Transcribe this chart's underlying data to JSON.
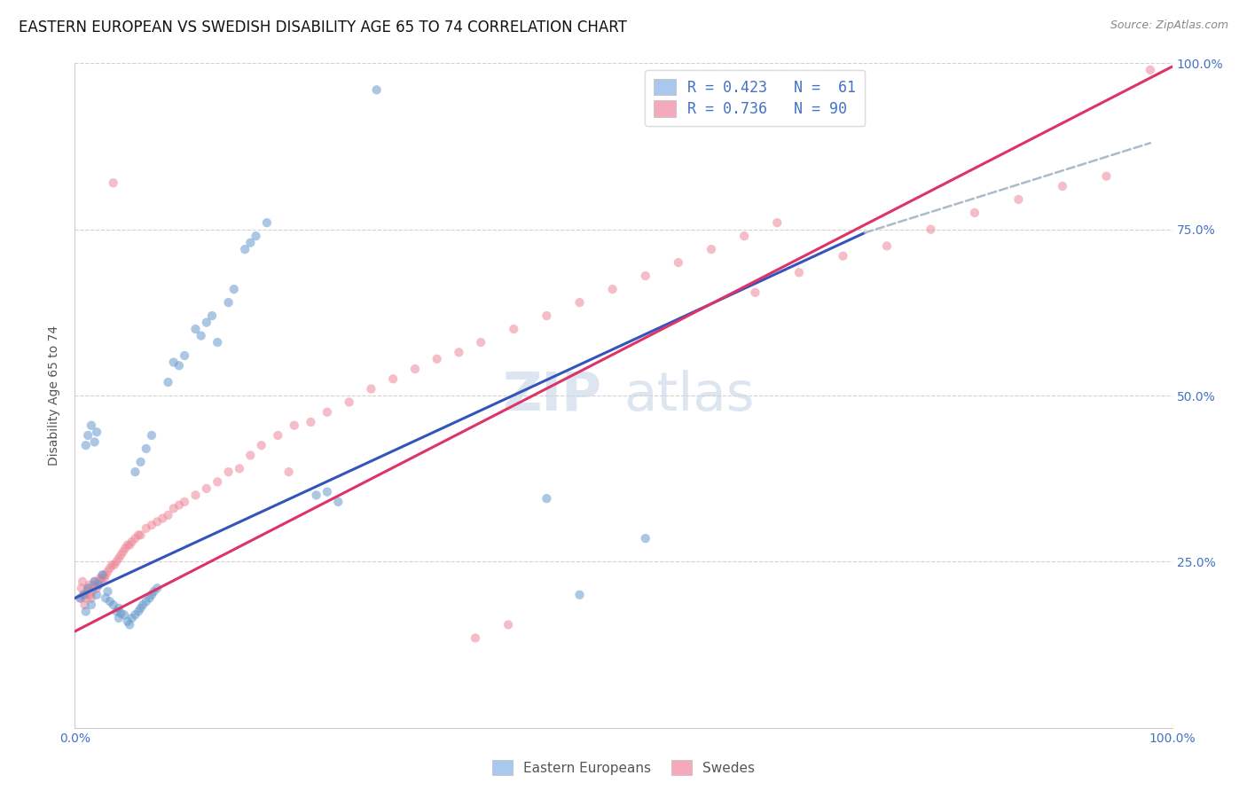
{
  "title": "EASTERN EUROPEAN VS SWEDISH DISABILITY AGE 65 TO 74 CORRELATION CHART",
  "source": "Source: ZipAtlas.com",
  "ylabel": "Disability Age 65 to 74",
  "xlim": [
    0.0,
    1.0
  ],
  "ylim": [
    0.0,
    1.0
  ],
  "xtick_vals": [
    0.0,
    1.0
  ],
  "xtick_labels": [
    "0.0%",
    "100.0%"
  ],
  "ytick_vals_right": [
    0.25,
    0.5,
    0.75,
    1.0
  ],
  "ytick_labels_right": [
    "25.0%",
    "50.0%",
    "75.0%",
    "100.0%"
  ],
  "watermark_zip": "ZIP",
  "watermark_atlas": "atlas",
  "blue_color": "#6699cc",
  "pink_color": "#ee8899",
  "blue_line_color": "#3355bb",
  "pink_line_color": "#dd3366",
  "dashed_line_color": "#aabbcc",
  "legend_blue_color": "#aac8ee",
  "legend_pink_color": "#f4aabb",
  "background_color": "#ffffff",
  "grid_color": "#cccccc",
  "title_fontsize": 12,
  "source_fontsize": 9,
  "axis_label_fontsize": 10,
  "tick_fontsize": 10,
  "scatter_size": 55,
  "scatter_alpha": 0.55,
  "blue_line": {
    "x0": 0.0,
    "y0": 0.195,
    "x1": 0.72,
    "y1": 0.745
  },
  "pink_line": {
    "x0": 0.0,
    "y0": 0.145,
    "x1": 1.0,
    "y1": 0.995
  },
  "dashed_line": {
    "x0": 0.72,
    "y0": 0.745,
    "x1": 0.98,
    "y1": 0.88
  },
  "blue_scatter": [
    [
      0.005,
      0.195
    ],
    [
      0.008,
      0.2
    ],
    [
      0.01,
      0.175
    ],
    [
      0.012,
      0.21
    ],
    [
      0.015,
      0.185
    ],
    [
      0.018,
      0.22
    ],
    [
      0.02,
      0.2
    ],
    [
      0.022,
      0.215
    ],
    [
      0.025,
      0.23
    ],
    [
      0.028,
      0.195
    ],
    [
      0.03,
      0.205
    ],
    [
      0.032,
      0.19
    ],
    [
      0.035,
      0.185
    ],
    [
      0.038,
      0.175
    ],
    [
      0.04,
      0.165
    ],
    [
      0.04,
      0.18
    ],
    [
      0.042,
      0.172
    ],
    [
      0.045,
      0.17
    ],
    [
      0.048,
      0.16
    ],
    [
      0.05,
      0.155
    ],
    [
      0.052,
      0.165
    ],
    [
      0.055,
      0.17
    ],
    [
      0.058,
      0.175
    ],
    [
      0.06,
      0.18
    ],
    [
      0.062,
      0.185
    ],
    [
      0.065,
      0.19
    ],
    [
      0.068,
      0.195
    ],
    [
      0.07,
      0.2
    ],
    [
      0.072,
      0.205
    ],
    [
      0.075,
      0.21
    ],
    [
      0.01,
      0.425
    ],
    [
      0.012,
      0.44
    ],
    [
      0.015,
      0.455
    ],
    [
      0.018,
      0.43
    ],
    [
      0.02,
      0.445
    ],
    [
      0.055,
      0.385
    ],
    [
      0.06,
      0.4
    ],
    [
      0.065,
      0.42
    ],
    [
      0.07,
      0.44
    ],
    [
      0.085,
      0.52
    ],
    [
      0.09,
      0.55
    ],
    [
      0.095,
      0.545
    ],
    [
      0.1,
      0.56
    ],
    [
      0.11,
      0.6
    ],
    [
      0.115,
      0.59
    ],
    [
      0.12,
      0.61
    ],
    [
      0.125,
      0.62
    ],
    [
      0.13,
      0.58
    ],
    [
      0.14,
      0.64
    ],
    [
      0.145,
      0.66
    ],
    [
      0.155,
      0.72
    ],
    [
      0.16,
      0.73
    ],
    [
      0.165,
      0.74
    ],
    [
      0.175,
      0.76
    ],
    [
      0.275,
      0.96
    ],
    [
      0.22,
      0.35
    ],
    [
      0.23,
      0.355
    ],
    [
      0.24,
      0.34
    ],
    [
      0.43,
      0.345
    ],
    [
      0.46,
      0.2
    ],
    [
      0.52,
      0.285
    ]
  ],
  "pink_scatter": [
    [
      0.005,
      0.195
    ],
    [
      0.006,
      0.21
    ],
    [
      0.007,
      0.22
    ],
    [
      0.008,
      0.2
    ],
    [
      0.009,
      0.185
    ],
    [
      0.01,
      0.195
    ],
    [
      0.01,
      0.2
    ],
    [
      0.011,
      0.205
    ],
    [
      0.012,
      0.21
    ],
    [
      0.013,
      0.215
    ],
    [
      0.014,
      0.2
    ],
    [
      0.015,
      0.195
    ],
    [
      0.016,
      0.205
    ],
    [
      0.017,
      0.215
    ],
    [
      0.018,
      0.22
    ],
    [
      0.019,
      0.215
    ],
    [
      0.02,
      0.21
    ],
    [
      0.021,
      0.215
    ],
    [
      0.022,
      0.22
    ],
    [
      0.023,
      0.225
    ],
    [
      0.024,
      0.22
    ],
    [
      0.025,
      0.225
    ],
    [
      0.026,
      0.23
    ],
    [
      0.027,
      0.225
    ],
    [
      0.028,
      0.23
    ],
    [
      0.03,
      0.235
    ],
    [
      0.032,
      0.24
    ],
    [
      0.034,
      0.245
    ],
    [
      0.036,
      0.245
    ],
    [
      0.038,
      0.25
    ],
    [
      0.04,
      0.255
    ],
    [
      0.042,
      0.26
    ],
    [
      0.044,
      0.265
    ],
    [
      0.046,
      0.27
    ],
    [
      0.048,
      0.275
    ],
    [
      0.05,
      0.275
    ],
    [
      0.052,
      0.28
    ],
    [
      0.055,
      0.285
    ],
    [
      0.058,
      0.29
    ],
    [
      0.06,
      0.29
    ],
    [
      0.065,
      0.3
    ],
    [
      0.07,
      0.305
    ],
    [
      0.075,
      0.31
    ],
    [
      0.08,
      0.315
    ],
    [
      0.085,
      0.32
    ],
    [
      0.09,
      0.33
    ],
    [
      0.095,
      0.335
    ],
    [
      0.1,
      0.34
    ],
    [
      0.11,
      0.35
    ],
    [
      0.12,
      0.36
    ],
    [
      0.13,
      0.37
    ],
    [
      0.14,
      0.385
    ],
    [
      0.15,
      0.39
    ],
    [
      0.16,
      0.41
    ],
    [
      0.17,
      0.425
    ],
    [
      0.185,
      0.44
    ],
    [
      0.2,
      0.455
    ],
    [
      0.215,
      0.46
    ],
    [
      0.23,
      0.475
    ],
    [
      0.25,
      0.49
    ],
    [
      0.27,
      0.51
    ],
    [
      0.29,
      0.525
    ],
    [
      0.31,
      0.54
    ],
    [
      0.33,
      0.555
    ],
    [
      0.35,
      0.565
    ],
    [
      0.37,
      0.58
    ],
    [
      0.4,
      0.6
    ],
    [
      0.43,
      0.62
    ],
    [
      0.46,
      0.64
    ],
    [
      0.49,
      0.66
    ],
    [
      0.52,
      0.68
    ],
    [
      0.55,
      0.7
    ],
    [
      0.58,
      0.72
    ],
    [
      0.61,
      0.74
    ],
    [
      0.64,
      0.76
    ],
    [
      0.035,
      0.82
    ],
    [
      0.195,
      0.385
    ],
    [
      0.365,
      0.135
    ],
    [
      0.395,
      0.155
    ],
    [
      0.62,
      0.655
    ],
    [
      0.66,
      0.685
    ],
    [
      0.7,
      0.71
    ],
    [
      0.74,
      0.725
    ],
    [
      0.78,
      0.75
    ],
    [
      0.82,
      0.775
    ],
    [
      0.86,
      0.795
    ],
    [
      0.9,
      0.815
    ],
    [
      0.94,
      0.83
    ],
    [
      0.98,
      0.99
    ]
  ]
}
